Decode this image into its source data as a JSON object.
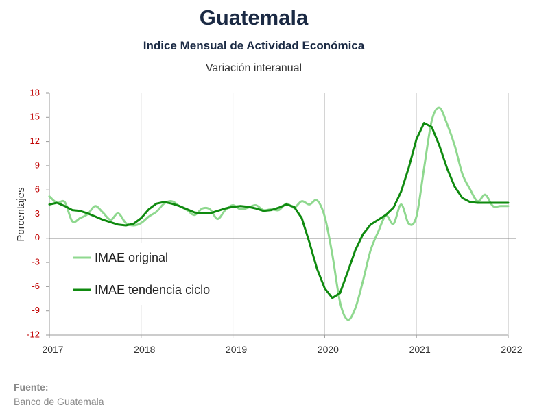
{
  "header": {
    "title": "Guatemala",
    "subtitle": "Indice Mensual de  Actividad Económica",
    "subsubtitle": "Variación interanual"
  },
  "source": {
    "label": "Fuente:",
    "value": "Banco de Guatemala"
  },
  "chart_data": {
    "type": "line",
    "ylabel": "Porcentajes",
    "xlabel": "",
    "ylim": [
      -12,
      18
    ],
    "yticks": [
      "18",
      "15",
      "12",
      "9",
      "6",
      "3",
      "0",
      "-3",
      "-6",
      "-9",
      "-12"
    ],
    "xlim": [
      2017,
      2022
    ],
    "xticks": [
      "2017",
      "2018",
      "2019",
      "2020",
      "2021",
      "2022"
    ],
    "grid": "vertical gridlines at years",
    "legend_position": "lower-left",
    "series": [
      {
        "name": "IMAE original",
        "color": "#8fd88f",
        "x": [
          2017.0,
          2017.083,
          2017.167,
          2017.25,
          2017.333,
          2017.417,
          2017.5,
          2017.583,
          2017.667,
          2017.75,
          2017.833,
          2017.917,
          2018.0,
          2018.083,
          2018.167,
          2018.25,
          2018.333,
          2018.417,
          2018.5,
          2018.583,
          2018.667,
          2018.75,
          2018.833,
          2018.917,
          2019.0,
          2019.083,
          2019.167,
          2019.25,
          2019.333,
          2019.417,
          2019.5,
          2019.583,
          2019.667,
          2019.75,
          2019.833,
          2019.917,
          2020.0,
          2020.083,
          2020.167,
          2020.25,
          2020.333,
          2020.417,
          2020.5,
          2020.583,
          2020.667,
          2020.75,
          2020.833,
          2020.917,
          2021.0,
          2021.083,
          2021.167,
          2021.25,
          2021.333,
          2021.417,
          2021.5,
          2021.583,
          2021.667,
          2021.75,
          2021.833,
          2021.917,
          2022.0
        ],
        "y": [
          5.2,
          4.4,
          4.5,
          2.1,
          2.5,
          3.0,
          4.0,
          3.2,
          2.3,
          3.1,
          1.9,
          1.6,
          1.9,
          2.7,
          3.3,
          4.3,
          4.6,
          4.0,
          3.5,
          2.9,
          3.7,
          3.6,
          2.4,
          3.5,
          4.1,
          3.6,
          3.8,
          4.1,
          3.5,
          3.6,
          3.5,
          4.3,
          3.8,
          4.6,
          4.2,
          4.7,
          2.7,
          -2.0,
          -7.9,
          -10.1,
          -8.7,
          -5.3,
          -1.5,
          0.8,
          2.8,
          1.8,
          4.2,
          1.8,
          2.7,
          8.7,
          14.6,
          16.2,
          14.2,
          11.5,
          8.0,
          6.1,
          4.6,
          5.4,
          4.0,
          4.0,
          4.0
        ]
      },
      {
        "name": "IMAE tendencia ciclo",
        "color": "#0f8a0f",
        "x": [
          2017.0,
          2017.083,
          2017.167,
          2017.25,
          2017.333,
          2017.417,
          2017.5,
          2017.583,
          2017.667,
          2017.75,
          2017.833,
          2017.917,
          2018.0,
          2018.083,
          2018.167,
          2018.25,
          2018.333,
          2018.417,
          2018.5,
          2018.583,
          2018.667,
          2018.75,
          2018.833,
          2018.917,
          2019.0,
          2019.083,
          2019.167,
          2019.25,
          2019.333,
          2019.417,
          2019.5,
          2019.583,
          2019.667,
          2019.75,
          2019.833,
          2019.917,
          2020.0,
          2020.083,
          2020.167,
          2020.25,
          2020.333,
          2020.417,
          2020.5,
          2020.583,
          2020.667,
          2020.75,
          2020.833,
          2020.917,
          2021.0,
          2021.083,
          2021.167,
          2021.25,
          2021.333,
          2021.417,
          2021.5,
          2021.583,
          2021.667,
          2021.75,
          2021.833,
          2021.917,
          2022.0
        ],
        "y": [
          4.2,
          4.4,
          4.0,
          3.5,
          3.4,
          3.1,
          2.7,
          2.3,
          2.0,
          1.7,
          1.6,
          1.8,
          2.5,
          3.6,
          4.3,
          4.5,
          4.3,
          4.0,
          3.6,
          3.2,
          3.1,
          3.1,
          3.4,
          3.7,
          3.9,
          4.0,
          3.9,
          3.7,
          3.4,
          3.5,
          3.8,
          4.2,
          3.9,
          2.5,
          -0.5,
          -3.8,
          -6.2,
          -7.4,
          -6.8,
          -4.2,
          -1.5,
          0.5,
          1.7,
          2.3,
          2.9,
          3.8,
          5.8,
          8.8,
          12.3,
          14.3,
          13.8,
          11.5,
          8.7,
          6.4,
          5.0,
          4.5,
          4.4,
          4.4,
          4.4,
          4.4,
          4.4
        ]
      }
    ]
  }
}
